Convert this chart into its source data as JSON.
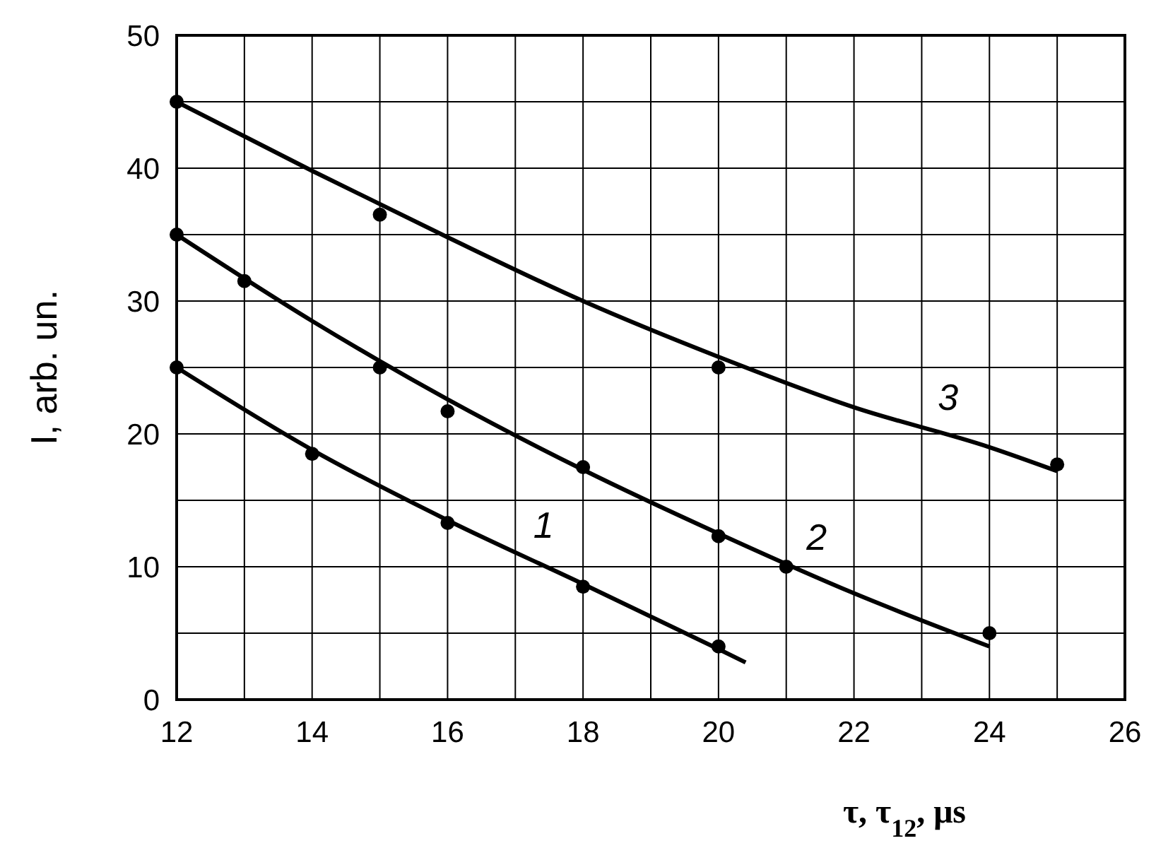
{
  "chart_data": {
    "type": "scatter",
    "xlabel": "τ, τ$_{12}$, μs",
    "ylabel": "I, arb. un.",
    "xlim": [
      12,
      26
    ],
    "ylim": [
      0,
      50
    ],
    "xticks": [
      12,
      {
        "value": 13,
        "label": null
      },
      14,
      {
        "value": 15,
        "label": null
      },
      16,
      {
        "value": 17,
        "label": null
      },
      18,
      {
        "value": 19,
        "label": null
      },
      20,
      {
        "value": 21,
        "label": null
      },
      22,
      {
        "value": 23,
        "label": null
      },
      24,
      {
        "value": 25,
        "label": null
      },
      26
    ],
    "yticks": [
      0,
      {
        "value": 5,
        "label": null
      },
      10,
      {
        "value": 15,
        "label": null
      },
      20,
      {
        "value": 25,
        "label": null
      },
      30,
      {
        "value": 35,
        "label": null
      },
      40,
      {
        "value": 45,
        "label": null
      },
      50
    ],
    "grid": true,
    "marker": "circle",
    "series": [
      {
        "color": "#000000",
        "x": [
          12,
          14,
          16,
          18,
          20
        ],
        "values": [
          25,
          18.5,
          13.3,
          8.5,
          4
        ]
      },
      {
        "color": "#000000",
        "x": [
          12,
          13,
          15,
          16,
          18,
          20,
          21,
          24
        ],
        "values": [
          35,
          31.5,
          25,
          21.7,
          17.5,
          12.3,
          10,
          5
        ]
      },
      {
        "color": "#000000",
        "x": [
          12,
          15,
          20,
          25
        ],
        "values": [
          45,
          36.5,
          25,
          17.7
        ]
      },
      {
        "type": "line",
        "color": "#000000",
        "marker": "none",
        "x": [
          12,
          14,
          16,
          18,
          20,
          20.4
        ],
        "values": [
          25,
          18.8,
          13.5,
          8.7,
          3.8,
          2.8
        ]
      },
      {
        "type": "line",
        "color": "#000000",
        "marker": "none",
        "x": [
          12,
          14,
          16,
          18,
          20,
          22,
          24
        ],
        "values": [
          35,
          28.5,
          22.6,
          17.3,
          12.5,
          8,
          4
        ]
      },
      {
        "type": "line",
        "color": "#000000",
        "marker": "none",
        "x": [
          12,
          14,
          16,
          18,
          20,
          22,
          24,
          25
        ],
        "values": [
          45,
          39.8,
          34.8,
          30,
          25.8,
          22,
          19,
          17.2
        ]
      }
    ],
    "annotations": [
      "1",
      "2",
      "3"
    ]
  }
}
